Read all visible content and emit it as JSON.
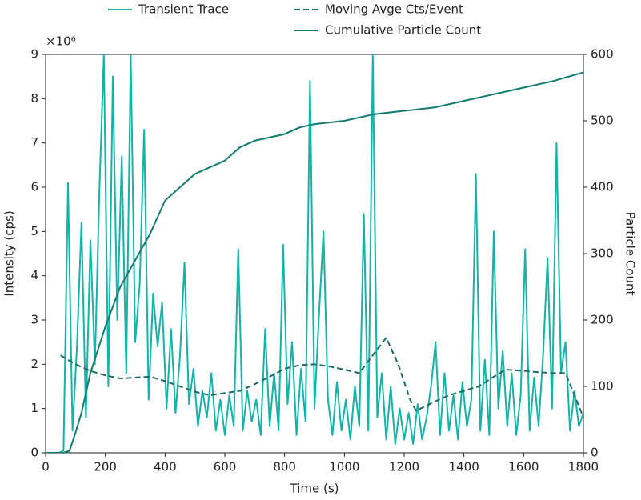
{
  "chart_data": {
    "type": "line",
    "y_scale_label": "×10⁶",
    "xlabel": "Time (s)",
    "ylabel": "Intensity (cps)",
    "y2label": "Particle Count",
    "legend": "upper center outside",
    "xlim": [
      0,
      1800
    ],
    "xticks": [
      0,
      200,
      400,
      600,
      800,
      1000,
      1200,
      1400,
      1600,
      1800
    ],
    "ylim": [
      0,
      9000000
    ],
    "yticks": [
      0,
      {
        "value": 1000000,
        "label": "1"
      },
      {
        "value": 2000000,
        "label": "2"
      },
      {
        "value": 3000000,
        "label": "3"
      },
      {
        "value": 4000000,
        "label": "4"
      },
      {
        "value": 5000000,
        "label": "5"
      },
      {
        "value": 6000000,
        "label": "6"
      },
      {
        "value": 7000000,
        "label": "7"
      },
      {
        "value": 8000000,
        "label": "8"
      },
      {
        "value": 9000000,
        "label": "9"
      }
    ],
    "y2lim": [
      0,
      600
    ],
    "y2ticks": [
      0,
      100,
      200,
      300,
      400,
      500,
      600
    ],
    "series": [
      {
        "name": "Transient Trace",
        "color": "#12b3a8",
        "style": "solid",
        "x": [
          0,
          15,
          30,
          45,
          60,
          75,
          90,
          105,
          120,
          135,
          150,
          165,
          180,
          195,
          210,
          225,
          240,
          255,
          270,
          285,
          300,
          315,
          330,
          345,
          360,
          375,
          390,
          405,
          420,
          435,
          450,
          465,
          480,
          495,
          510,
          525,
          540,
          555,
          570,
          585,
          600,
          615,
          630,
          645,
          660,
          675,
          690,
          705,
          720,
          735,
          750,
          765,
          780,
          795,
          810,
          825,
          840,
          855,
          870,
          885,
          900,
          915,
          930,
          945,
          960,
          975,
          990,
          1005,
          1020,
          1035,
          1050,
          1065,
          1080,
          1095,
          1110,
          1125,
          1140,
          1155,
          1170,
          1185,
          1200,
          1215,
          1230,
          1245,
          1260,
          1275,
          1290,
          1305,
          1320,
          1335,
          1350,
          1365,
          1380,
          1395,
          1410,
          1425,
          1440,
          1455,
          1470,
          1485,
          1500,
          1515,
          1530,
          1545,
          1560,
          1575,
          1590,
          1605,
          1620,
          1635,
          1650,
          1665,
          1680,
          1695,
          1710,
          1725,
          1740,
          1755,
          1770,
          1785,
          1800
        ],
        "values": [
          0,
          0,
          0,
          0,
          50000,
          6100000,
          500000,
          2400000,
          5200000,
          800000,
          4800000,
          2000000,
          5900000,
          9000000,
          1500000,
          8500000,
          3000000,
          6700000,
          1800000,
          9000000,
          2500000,
          3800000,
          7300000,
          1200000,
          3600000,
          2400000,
          3400000,
          1000000,
          2800000,
          900000,
          2200000,
          4300000,
          1100000,
          1900000,
          600000,
          1400000,
          800000,
          1800000,
          500000,
          1200000,
          400000,
          1300000,
          600000,
          4600000,
          500000,
          1400000,
          700000,
          1200000,
          400000,
          2800000,
          600000,
          1800000,
          500000,
          4700000,
          1100000,
          2500000,
          400000,
          1900000,
          700000,
          8400000,
          1000000,
          3100000,
          5000000,
          1200000,
          400000,
          1600000,
          500000,
          1200000,
          300000,
          1500000,
          600000,
          5400000,
          500000,
          9000000,
          800000,
          1800000,
          300000,
          1500000,
          200000,
          1000000,
          300000,
          900000,
          200000,
          1100000,
          300000,
          800000,
          1500000,
          2500000,
          400000,
          1800000,
          500000,
          1300000,
          300000,
          1600000,
          600000,
          1200000,
          6300000,
          500000,
          2100000,
          400000,
          5000000,
          1000000,
          2300000,
          600000,
          1800000,
          400000,
          1300000,
          4600000,
          500000,
          1700000,
          600000,
          2200000,
          4400000,
          1000000,
          7000000,
          1800000,
          2500000,
          500000,
          1400000,
          600000,
          900000
        ]
      },
      {
        "name": "Moving Avge Cts/Event",
        "color": "#1a6b64",
        "style": "dashed",
        "x": [
          50,
          100,
          150,
          200,
          250,
          300,
          350,
          400,
          450,
          500,
          550,
          600,
          650,
          700,
          750,
          800,
          850,
          900,
          950,
          1000,
          1050,
          1100,
          1140,
          1180,
          1220,
          1240,
          1300,
          1350,
          1400,
          1450,
          1500,
          1540,
          1600,
          1650,
          1700,
          1740,
          1770,
          1800
        ],
        "values": [
          2200000,
          2000000,
          1850000,
          1750000,
          1680000,
          1700000,
          1720000,
          1620000,
          1500000,
          1380000,
          1300000,
          1350000,
          1400000,
          1550000,
          1720000,
          1900000,
          1980000,
          2000000,
          1950000,
          1880000,
          1800000,
          2250000,
          2600000,
          2000000,
          1200000,
          950000,
          1150000,
          1300000,
          1400000,
          1500000,
          1720000,
          1880000,
          1850000,
          1820000,
          1800000,
          1800000,
          1300000,
          800000
        ]
      },
      {
        "name": "Cumulative Particle Count",
        "color": "#137a70",
        "style": "solid",
        "axis": "y2",
        "x": [
          0,
          60,
          80,
          100,
          120,
          150,
          200,
          250,
          300,
          350,
          400,
          450,
          500,
          550,
          600,
          650,
          700,
          800,
          850,
          900,
          1000,
          1100,
          1200,
          1300,
          1400,
          1500,
          1600,
          1700,
          1800
        ],
        "values": [
          0,
          0,
          3,
          30,
          60,
          120,
          190,
          250,
          290,
          330,
          380,
          400,
          420,
          430,
          440,
          460,
          470,
          480,
          490,
          495,
          500,
          510,
          515,
          520,
          530,
          540,
          550,
          560,
          573
        ]
      }
    ]
  }
}
